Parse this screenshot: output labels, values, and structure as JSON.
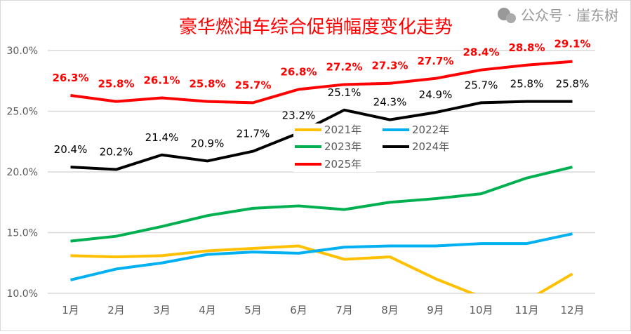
{
  "chart_data": {
    "type": "line",
    "title": "豪华燃油车综合促销幅度变化走势",
    "categories": [
      "1月",
      "2月",
      "3月",
      "4月",
      "5月",
      "6月",
      "7月",
      "8月",
      "9月",
      "10月",
      "11月",
      "12月"
    ],
    "ylim": [
      10,
      30
    ],
    "yticks": [
      "10.0%",
      "15.0%",
      "20.0%",
      "25.0%",
      "30.0%"
    ],
    "ytick_values": [
      10,
      15,
      20,
      25,
      30
    ],
    "grid": true,
    "legend_position": "center",
    "series": [
      {
        "name": "2021年",
        "color": "#FFC000",
        "values": [
          13.1,
          13.0,
          13.1,
          13.5,
          13.7,
          13.9,
          12.8,
          13.0,
          11.2,
          9.7,
          9.4,
          11.6
        ],
        "labels": false
      },
      {
        "name": "2022年",
        "color": "#00B0F0",
        "values": [
          11.1,
          12.0,
          12.5,
          13.2,
          13.4,
          13.3,
          13.8,
          13.9,
          13.9,
          14.1,
          14.1,
          14.9
        ],
        "labels": false
      },
      {
        "name": "2023年",
        "color": "#00B050",
        "values": [
          14.3,
          14.7,
          15.5,
          16.4,
          17.0,
          17.2,
          16.9,
          17.5,
          17.8,
          18.2,
          19.5,
          20.4
        ],
        "labels": false
      },
      {
        "name": "2024年",
        "color": "#000000",
        "values": [
          20.4,
          20.2,
          21.4,
          20.9,
          21.7,
          23.2,
          25.1,
          24.3,
          24.9,
          25.7,
          25.8,
          25.8
        ],
        "labels": true,
        "label_text": [
          "20.4%",
          "20.2%",
          "21.4%",
          "20.9%",
          "21.7%",
          "23.2%",
          "25.1%",
          "24.3%",
          "24.9%",
          "25.7%",
          "25.8%",
          "25.8%"
        ]
      },
      {
        "name": "2025年",
        "color": "#FF0000",
        "values": [
          26.3,
          25.8,
          26.1,
          25.8,
          25.7,
          26.8,
          27.2,
          27.3,
          27.7,
          28.4,
          28.8,
          29.1
        ],
        "labels": true,
        "label_text": [
          "26.3%",
          "25.8%",
          "26.1%",
          "25.8%",
          "25.7%",
          "26.8%",
          "27.2%",
          "27.3%",
          "27.7%",
          "28.4%",
          "28.8%",
          "29.1%"
        ]
      }
    ]
  },
  "watermark": "公众号 · 崖东树"
}
